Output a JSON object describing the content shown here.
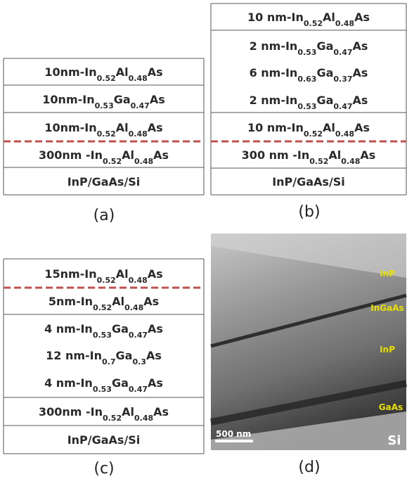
{
  "panels": [
    {
      "caption": "(a)",
      "layers": [
        [
          "10nm-In",
          "0.52",
          "Al",
          "0.48",
          "As"
        ],
        [
          "10nm-In",
          "0.53",
          "Ga",
          "0.47",
          "As"
        ],
        [
          "10nm-In",
          "0.52",
          "Al",
          "0.48",
          "As"
        ],
        [
          "300nm -In",
          "0.52",
          "Al",
          "0.48",
          "As"
        ],
        [
          "InP/GaAs/Si"
        ]
      ]
    },
    {
      "caption": "(b)",
      "layers": [
        [
          "10 nm-In",
          "0.52",
          "Al",
          "0.48",
          "As"
        ],
        [
          "2 nm-In",
          "0.53",
          "Ga",
          "0.47",
          "As"
        ],
        [
          "6 nm-In",
          "0.63",
          "Ga",
          "0.37",
          "As"
        ],
        [
          "2 nm-In",
          "0.53",
          "Ga",
          "0.47",
          "As"
        ],
        [
          "10 nm-In",
          "0.52",
          "Al",
          "0.48",
          "As"
        ],
        [
          "300 nm -In",
          "0.52",
          "Al",
          "0.48",
          "As"
        ],
        [
          "InP/GaAs/Si"
        ]
      ]
    },
    {
      "caption": "(c)",
      "layers": [
        [
          "15nm-In",
          "0.52",
          "Al",
          "0.48",
          "As"
        ],
        [
          "5nm-In",
          "0.52",
          "Al",
          "0.48",
          "As"
        ],
        [
          "4 nm-In",
          "0.53",
          "Ga",
          "0.47",
          "As"
        ],
        [
          "12 nm-In",
          "0.7",
          "Ga",
          "0.3",
          "As"
        ],
        [
          "4 nm-In",
          "0.53",
          "Ga",
          "0.47",
          "As"
        ],
        [
          "300nm -In",
          "0.52",
          "Al",
          "0.48",
          "As"
        ],
        [
          "InP/GaAs/Si"
        ]
      ]
    }
  ],
  "image": {
    "caption": "(d)",
    "labels": [
      "InP",
      "InGaAs",
      "InP",
      "GaAs",
      "Si"
    ],
    "scale_bar": "500 nm"
  }
}
